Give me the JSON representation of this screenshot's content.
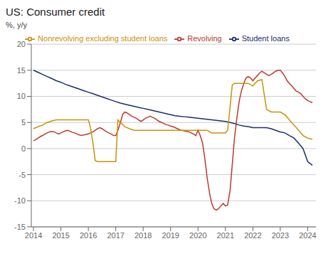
{
  "chart_data": {
    "type": "line",
    "title": "US: Consumer credit",
    "y_label": "%, y/y",
    "xlim": [
      2013.92,
      2024.3
    ],
    "xticks": [
      2014,
      2015,
      2016,
      2017,
      2018,
      2019,
      2020,
      2021,
      2022,
      2023,
      2024
    ],
    "ylim": [
      -15,
      20
    ],
    "yticks": [
      -15,
      -10,
      -5,
      0,
      5,
      10,
      15,
      20
    ],
    "grid": true,
    "legend": "top",
    "series": [
      {
        "name": "Revolving",
        "color": "#c0392b",
        "x": [
          2014.0,
          2014.08,
          2014.17,
          2014.25,
          2014.33,
          2014.42,
          2014.5,
          2014.58,
          2014.67,
          2014.75,
          2014.83,
          2014.92,
          2015.0,
          2015.08,
          2015.17,
          2015.25,
          2015.33,
          2015.42,
          2015.5,
          2015.58,
          2015.67,
          2015.75,
          2015.83,
          2015.92,
          2016.0,
          2016.08,
          2016.17,
          2016.25,
          2016.33,
          2016.42,
          2016.5,
          2016.58,
          2016.67,
          2016.75,
          2016.83,
          2016.92,
          2017.0,
          2017.08,
          2017.17,
          2017.25,
          2017.33,
          2017.42,
          2017.5,
          2017.58,
          2017.67,
          2017.75,
          2017.83,
          2017.92,
          2018.0,
          2018.08,
          2018.17,
          2018.25,
          2018.33,
          2018.42,
          2018.5,
          2018.58,
          2018.67,
          2018.75,
          2018.83,
          2018.92,
          2019.0,
          2019.08,
          2019.17,
          2019.25,
          2019.33,
          2019.42,
          2019.5,
          2019.58,
          2019.67,
          2019.75,
          2019.83,
          2019.92,
          2020.0,
          2020.08,
          2020.17,
          2020.25,
          2020.33,
          2020.42,
          2020.5,
          2020.58,
          2020.67,
          2020.75,
          2020.83,
          2020.92,
          2021.0,
          2021.08,
          2021.17,
          2021.25,
          2021.33,
          2021.42,
          2021.5,
          2021.58,
          2021.67,
          2021.75,
          2021.83,
          2021.92,
          2022.0,
          2022.08,
          2022.17,
          2022.25,
          2022.33,
          2022.42,
          2022.5,
          2022.58,
          2022.67,
          2022.75,
          2022.83,
          2022.92,
          2023.0,
          2023.08,
          2023.17,
          2023.25,
          2023.33,
          2023.42,
          2023.5,
          2023.58,
          2023.67,
          2023.75,
          2023.83,
          2023.92,
          2024.0,
          2024.08,
          2024.17
        ],
        "values": [
          1.5,
          1.7,
          2.0,
          2.3,
          2.5,
          2.8,
          3.0,
          3.2,
          3.3,
          3.2,
          3.0,
          2.8,
          3.0,
          3.2,
          3.4,
          3.5,
          3.3,
          3.1,
          3.0,
          2.8,
          2.6,
          2.5,
          2.6,
          2.7,
          2.8,
          3.0,
          3.2,
          3.5,
          3.8,
          4.0,
          3.8,
          3.5,
          3.2,
          3.0,
          2.8,
          2.5,
          2.5,
          3.5,
          5.0,
          6.5,
          7.0,
          6.8,
          6.5,
          6.2,
          6.0,
          5.8,
          5.5,
          5.2,
          5.5,
          5.8,
          6.0,
          6.2,
          6.0,
          5.8,
          5.5,
          5.2,
          5.0,
          4.8,
          4.6,
          4.5,
          4.3,
          4.2,
          4.0,
          3.8,
          3.6,
          3.5,
          3.4,
          3.3,
          3.2,
          3.0,
          2.8,
          2.5,
          3.5,
          2.5,
          1.0,
          -2.0,
          -5.5,
          -8.5,
          -10.5,
          -11.5,
          -11.8,
          -11.5,
          -11.0,
          -10.5,
          -11.0,
          -10.8,
          -8.0,
          -3.0,
          2.0,
          6.0,
          9.0,
          11.0,
          12.5,
          13.5,
          13.8,
          13.5,
          13.0,
          13.5,
          14.0,
          14.5,
          14.8,
          14.5,
          14.2,
          14.0,
          14.2,
          14.5,
          14.8,
          15.0,
          15.0,
          14.5,
          13.8,
          13.0,
          12.5,
          12.0,
          11.5,
          11.0,
          10.8,
          10.5,
          10.0,
          9.5,
          9.2,
          9.0,
          8.8
        ]
      },
      {
        "name": "Student loans",
        "color": "#1a2e6e",
        "x": [
          2014.0,
          2014.17,
          2014.33,
          2014.5,
          2014.67,
          2014.83,
          2015.0,
          2015.17,
          2015.33,
          2015.5,
          2015.67,
          2015.83,
          2016.0,
          2016.17,
          2016.33,
          2016.5,
          2016.67,
          2016.83,
          2017.0,
          2017.17,
          2017.33,
          2017.5,
          2017.67,
          2017.83,
          2018.0,
          2018.17,
          2018.33,
          2018.5,
          2018.67,
          2018.83,
          2019.0,
          2019.17,
          2019.33,
          2019.5,
          2019.67,
          2019.83,
          2020.0,
          2020.17,
          2020.33,
          2020.5,
          2020.67,
          2020.83,
          2021.0,
          2021.17,
          2021.33,
          2021.5,
          2021.67,
          2021.83,
          2022.0,
          2022.17,
          2022.33,
          2022.5,
          2022.67,
          2022.83,
          2023.0,
          2023.17,
          2023.33,
          2023.5,
          2023.67,
          2023.83,
          2024.0,
          2024.17
        ],
        "values": [
          15.0,
          14.6,
          14.2,
          13.8,
          13.4,
          13.0,
          12.7,
          12.3,
          12.0,
          11.7,
          11.4,
          11.1,
          10.8,
          10.5,
          10.2,
          9.9,
          9.6,
          9.3,
          9.0,
          8.7,
          8.5,
          8.3,
          8.1,
          7.9,
          7.7,
          7.5,
          7.3,
          7.1,
          6.9,
          6.7,
          6.5,
          6.3,
          6.2,
          6.1,
          6.0,
          5.9,
          5.8,
          5.7,
          5.6,
          5.5,
          5.4,
          5.3,
          5.2,
          5.0,
          4.8,
          4.5,
          4.3,
          4.2,
          4.0,
          4.0,
          4.0,
          4.0,
          3.8,
          3.5,
          3.2,
          3.0,
          2.5,
          2.0,
          1.0,
          0.0,
          -2.5,
          -3.2
        ]
      },
      {
        "name": "Nonrevolving excluding student loans",
        "color": "#c8920a",
        "x": [
          2014.0,
          2014.17,
          2014.33,
          2014.5,
          2014.67,
          2014.83,
          2015.0,
          2015.17,
          2015.33,
          2015.5,
          2015.67,
          2015.83,
          2016.0,
          2016.08,
          2016.17,
          2016.25,
          2016.33,
          2016.83,
          2016.92,
          2017.0,
          2017.08,
          2017.17,
          2017.33,
          2017.5,
          2017.67,
          2017.83,
          2018.0,
          2018.17,
          2018.33,
          2018.5,
          2018.67,
          2018.83,
          2019.0,
          2019.17,
          2019.33,
          2019.5,
          2019.67,
          2019.83,
          2020.0,
          2020.17,
          2020.33,
          2020.5,
          2020.67,
          2020.83,
          2021.0,
          2021.08,
          2021.17,
          2021.25,
          2021.33,
          2021.5,
          2021.67,
          2021.83,
          2022.0,
          2022.17,
          2022.33,
          2022.5,
          2022.67,
          2022.83,
          2023.0,
          2023.17,
          2023.33,
          2023.5,
          2023.67,
          2023.83,
          2024.0,
          2024.17
        ],
        "values": [
          3.8,
          4.2,
          4.5,
          5.0,
          5.3,
          5.5,
          5.5,
          5.5,
          5.5,
          5.5,
          5.5,
          5.5,
          5.5,
          4.0,
          1.0,
          -2.3,
          -2.5,
          -2.5,
          -2.5,
          -2.5,
          5.5,
          5.0,
          4.2,
          3.8,
          3.5,
          3.5,
          3.5,
          3.5,
          3.5,
          3.5,
          3.5,
          3.5,
          3.5,
          3.5,
          3.5,
          3.5,
          3.5,
          3.5,
          3.5,
          3.5,
          3.5,
          3.0,
          3.0,
          3.0,
          3.0,
          3.5,
          8.0,
          12.2,
          12.5,
          12.5,
          12.5,
          12.5,
          12.0,
          13.0,
          13.2,
          7.5,
          7.0,
          7.0,
          7.0,
          6.5,
          5.5,
          4.5,
          3.5,
          2.5,
          2.0,
          1.8
        ]
      }
    ]
  }
}
